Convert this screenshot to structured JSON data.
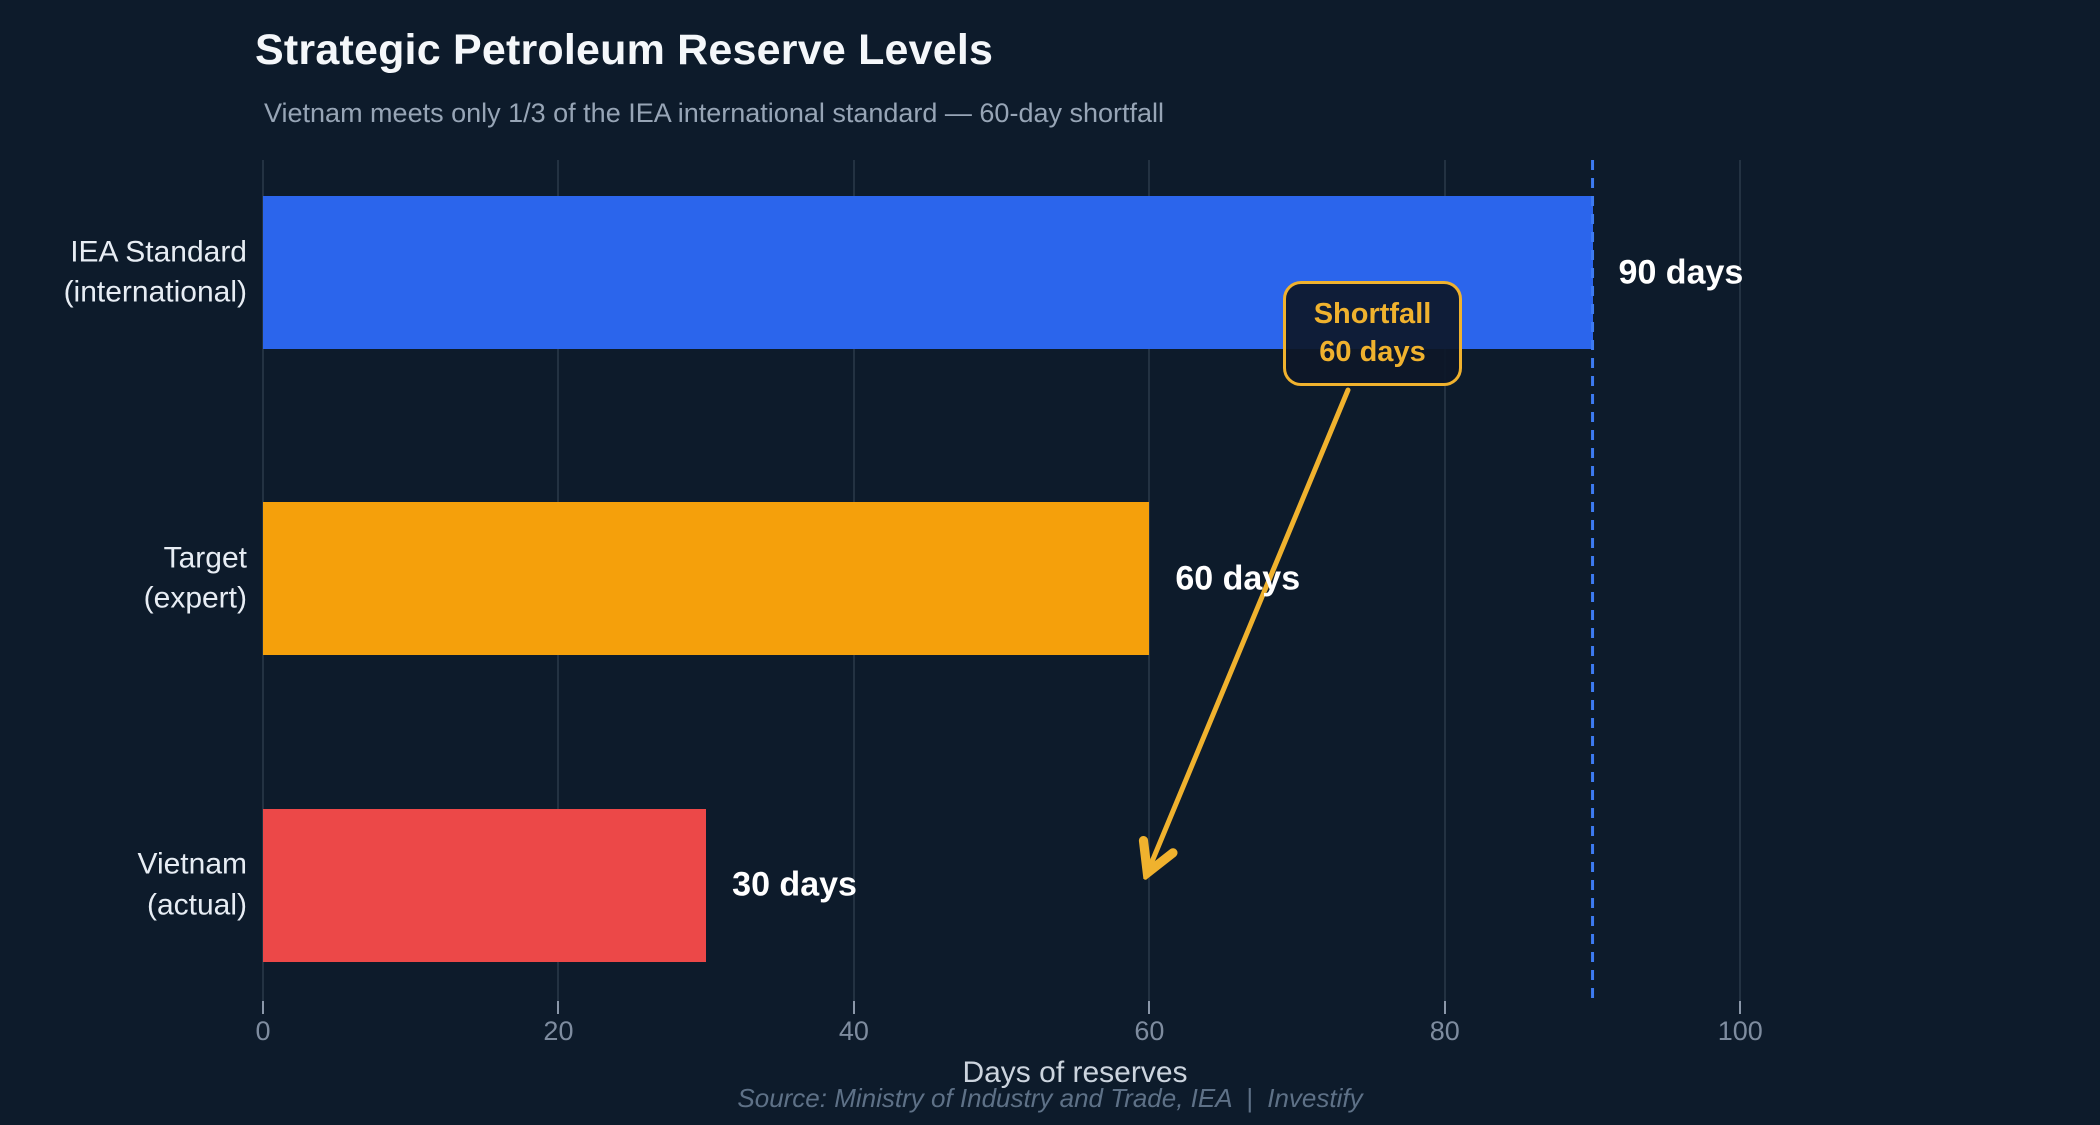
{
  "chart_data": {
    "type": "bar",
    "orientation": "horizontal",
    "title": "Strategic Petroleum Reserve Levels",
    "subtitle": "Vietnam meets only 1/3 of the IEA international standard — 60-day shortfall",
    "categories": [
      [
        "IEA Standard",
        "(international)"
      ],
      [
        "Target",
        "(expert)"
      ],
      [
        "Vietnam",
        "(actual)"
      ]
    ],
    "values": [
      90,
      60,
      30
    ],
    "unit": "days",
    "value_labels": [
      "90 days",
      "60 days",
      "30 days"
    ],
    "bar_colors": [
      "#2b65ec",
      "#f5a00b",
      "#ec4848"
    ],
    "xlabel": "Days of reserves",
    "x_ticks": [
      0,
      20,
      40,
      60,
      80,
      100
    ],
    "xlim": [
      0,
      110
    ],
    "grid": true,
    "legend": false,
    "reference_line": {
      "x": 90,
      "style": "dashed"
    },
    "annotation": {
      "lines": [
        "Shortfall",
        "60 days"
      ],
      "arrow_target_x": 60
    }
  },
  "footer": {
    "source": "Source: Ministry of Industry and Trade, IEA  |  Investify"
  },
  "colors": {
    "background": "#0d1b2b",
    "title": "#f4f7fa",
    "subtitle": "#97a5b6",
    "category-label": "#e7edf4",
    "value-label": "#ffffff",
    "tick-label": "#7e8c9f",
    "tick-mark": "#8a97a9",
    "axis-title": "#ccd4de",
    "footer": "#5e7187",
    "gridline": "rgba(170,190,210,0.14)",
    "accent-gold": "#f0b22e",
    "ref-line": "#3d7bf2"
  }
}
